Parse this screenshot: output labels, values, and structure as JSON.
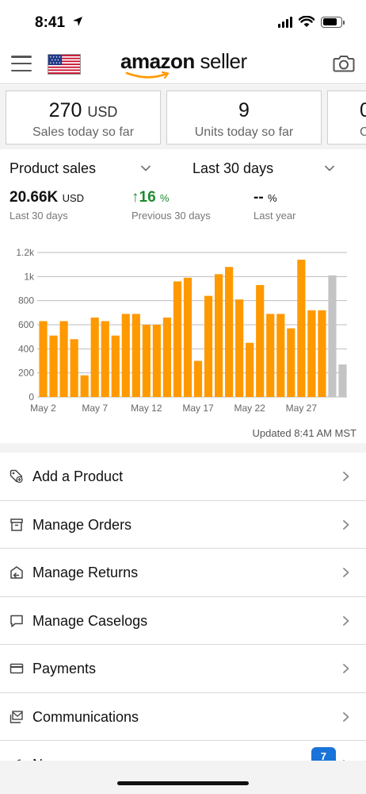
{
  "status_bar": {
    "time": "8:41"
  },
  "header": {
    "logo_bold": "amazon",
    "logo_rest": " seller"
  },
  "cards": [
    {
      "value": "270",
      "unit": "USD",
      "label": "Sales today so far"
    },
    {
      "value": "9",
      "unit": "",
      "label": "Units today so far"
    },
    {
      "value": "0",
      "unit": "",
      "label": "C"
    }
  ],
  "filters": {
    "metric": "Product sales",
    "period": "Last 30 days"
  },
  "summary": {
    "current": {
      "value": "20.66K",
      "unit": "USD",
      "label": "Last 30 days"
    },
    "previous": {
      "arrow": "↑",
      "value": "16",
      "unit": "%",
      "label": "Previous 30 days"
    },
    "last_year": {
      "value": "--",
      "unit": "%",
      "label": "Last year"
    }
  },
  "chart_data": {
    "type": "bar",
    "ylim": [
      0,
      1200
    ],
    "y_ticks": [
      0,
      200,
      400,
      600,
      800,
      1000,
      1200
    ],
    "y_tick_labels": [
      "0",
      "200",
      "400",
      "600",
      "800",
      "1k",
      "1.2k"
    ],
    "x_tick_labels": [
      "May 2",
      "May 7",
      "May 12",
      "May 17",
      "May 22",
      "May 27"
    ],
    "x_tick_positions": [
      0,
      5,
      10,
      15,
      20,
      25
    ],
    "values": [
      630,
      510,
      630,
      480,
      180,
      660,
      630,
      510,
      690,
      690,
      600,
      600,
      660,
      960,
      990,
      300,
      840,
      1020,
      1080,
      810,
      450,
      930,
      690,
      690,
      570,
      1140,
      720,
      720,
      1010,
      270
    ],
    "projected_from_index": 28,
    "colors": {
      "actual": "#ff9900",
      "projected": "#c4c4c6",
      "grid": "#bdbdbd"
    }
  },
  "updated": "Updated 8:41 AM MST",
  "menu": [
    {
      "label": "Add a Product",
      "icon": "tag-icon"
    },
    {
      "label": "Manage Orders",
      "icon": "box-icon"
    },
    {
      "label": "Manage Returns",
      "icon": "return-box-icon"
    },
    {
      "label": "Manage Caselogs",
      "icon": "chat-bubble-icon"
    },
    {
      "label": "Payments",
      "icon": "card-icon"
    },
    {
      "label": "Communications",
      "icon": "mail-icon"
    },
    {
      "label": "N",
      "icon": "megaphone-icon",
      "badge": "7"
    }
  ]
}
